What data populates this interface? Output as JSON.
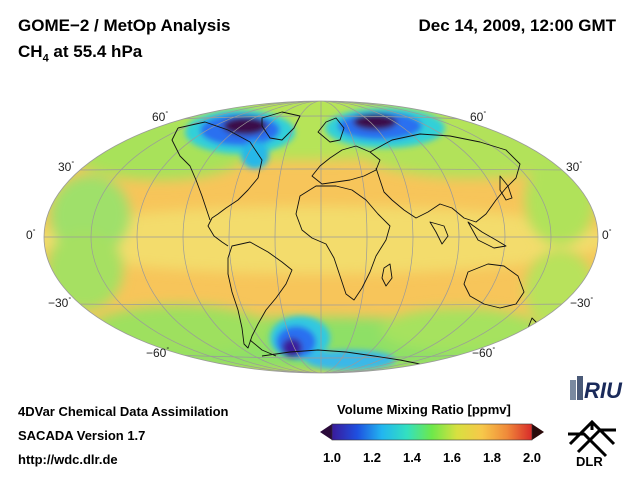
{
  "title": {
    "line1": "GOME−2 / MetOp Analysis",
    "line2_main": "CH",
    "line2_sub": "4",
    "line2_rest": " at 55.4 hPa",
    "date": "Dec 14, 2009, 12:00 GMT"
  },
  "lat_labels_left": [
    "60",
    "30",
    "0",
    "−30",
    "−60"
  ],
  "lat_labels_right": [
    "60",
    "30",
    "0",
    "−30",
    "−60"
  ],
  "degree_symbol": "°",
  "footer": {
    "line1": "4DVar Chemical Data Assimilation",
    "line2": "SACADA Version 1.7",
    "line3": "http://wdc.dlr.de"
  },
  "colorbar": {
    "title": "Volume Mixing Ratio [ppmv]",
    "ticks": [
      "1.0",
      "1.2",
      "1.4",
      "1.6",
      "1.8",
      "2.0"
    ],
    "min": 1.0,
    "max": 2.0,
    "colors": [
      "#1a0030",
      "#3a1a9a",
      "#1e4fe0",
      "#22b6f0",
      "#33e0c0",
      "#6ee84a",
      "#d8e040",
      "#f7c84a",
      "#f08a3a",
      "#d82a2a",
      "#2a0a0a"
    ]
  },
  "logos": {
    "riu": "RIU",
    "dlr": "DLR"
  },
  "colors": {
    "background_field": "#f7c55a",
    "equatorial_band": "#f4e070",
    "ocean_green": "#8ee060",
    "low_blue": "#2a6ff0",
    "min_purple": "#3a0a4a"
  }
}
